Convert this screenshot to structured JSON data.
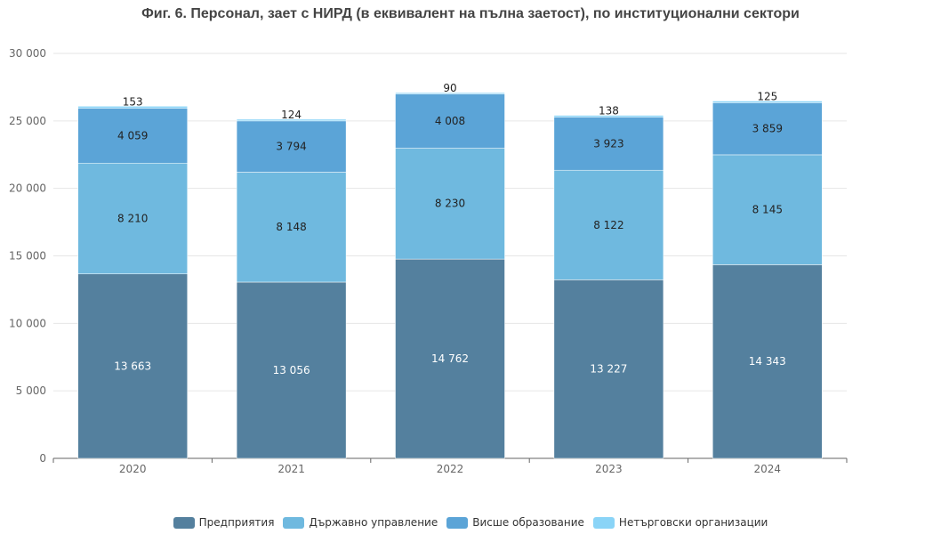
{
  "chart_data": {
    "type": "bar",
    "stacked": true,
    "title": "Фиг. 6. Персонал, зает с НИРД (в еквивалент на пълна заетост), по институционални сектори",
    "categories": [
      "2020",
      "2021",
      "2022",
      "2023",
      "2024"
    ],
    "ylim": [
      0,
      30000
    ],
    "yticks": [
      0,
      5000,
      10000,
      15000,
      20000,
      25000,
      30000
    ],
    "ytick_labels": [
      "0",
      "5 000",
      "10 000",
      "15 000",
      "20 000",
      "25 000",
      "30 000"
    ],
    "grid": true,
    "legend_position": "bottom",
    "series": [
      {
        "name": "Предприятия",
        "color": "#54809e",
        "label_color": "#ffffff",
        "values": [
          13663,
          13056,
          14762,
          13227,
          14343
        ],
        "labels": [
          "13 663",
          "13 056",
          "14 762",
          "13 227",
          "14 343"
        ]
      },
      {
        "name": "Държавно управление",
        "color": "#6fb9df",
        "label_color": "#222222",
        "values": [
          8210,
          8148,
          8230,
          8122,
          8145
        ],
        "labels": [
          "8 210",
          "8 148",
          "8 230",
          "8 122",
          "8 145"
        ]
      },
      {
        "name": "Висше образование",
        "color": "#5ba4d7",
        "label_color": "#222222",
        "values": [
          4059,
          3794,
          4008,
          3923,
          3859
        ],
        "labels": [
          "4 059",
          "3 794",
          "4 008",
          "3 923",
          "3 859"
        ]
      },
      {
        "name": "Нетърговски организации",
        "color": "#8ad4f7",
        "label_color": "#222222",
        "values": [
          153,
          124,
          90,
          138,
          125
        ],
        "labels": [
          "153",
          "124",
          "90",
          "138",
          "125"
        ]
      }
    ]
  }
}
